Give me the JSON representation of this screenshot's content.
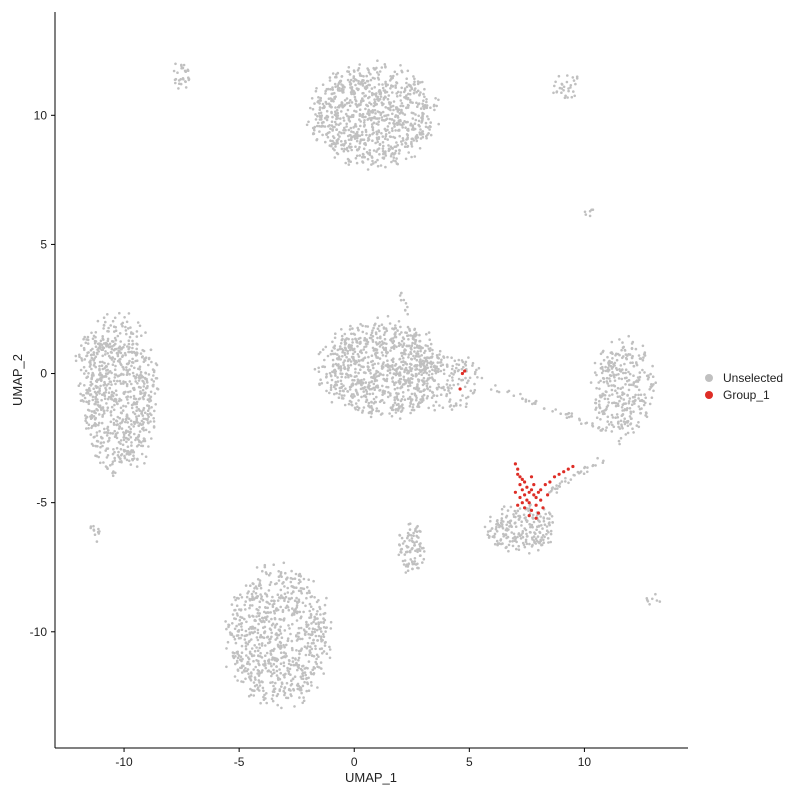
{
  "chart_data": {
    "type": "scatter",
    "title": "",
    "xlabel": "UMAP_1",
    "ylabel": "UMAP_2",
    "xlim": [
      -13.0,
      14.5
    ],
    "ylim": [
      -14.5,
      14.0
    ],
    "x_ticks": [
      -10,
      -5,
      0,
      5,
      10
    ],
    "y_ticks": [
      10,
      5,
      0,
      -5,
      -10
    ],
    "grid": false,
    "legend_position": "right",
    "series": [
      {
        "name": "Unselected",
        "color": "#c0c0c0",
        "clusters": [
          {
            "center": [
              0.8,
              10.0
            ],
            "radius": [
              2.6,
              1.9
            ],
            "points": 900
          },
          {
            "center": [
              -10.2,
              -0.8
            ],
            "radius": [
              1.6,
              2.9
            ],
            "points": 750
          },
          {
            "center": [
              -3.3,
              -10.2
            ],
            "radius": [
              2.2,
              2.6
            ],
            "points": 800
          },
          {
            "center": [
              1.2,
              0.2
            ],
            "radius": [
              2.6,
              1.8
            ],
            "points": 850
          },
          {
            "center": [
              3.8,
              -0.3
            ],
            "radius": [
              1.6,
              1.2
            ],
            "points": 150
          },
          {
            "center": [
              7.2,
              -6.0
            ],
            "radius": [
              1.5,
              0.9
            ],
            "points": 220
          },
          {
            "center": [
              11.7,
              -0.6
            ],
            "radius": [
              1.3,
              1.9
            ],
            "points": 320
          },
          {
            "center": [
              2.5,
              -6.8
            ],
            "radius": [
              0.6,
              0.9
            ],
            "points": 90
          },
          {
            "center": [
              -7.5,
              11.5
            ],
            "radius": [
              0.4,
              0.6
            ],
            "points": 30
          },
          {
            "center": [
              9.2,
              11.1
            ],
            "radius": [
              0.6,
              0.5
            ],
            "points": 30
          },
          {
            "center": [
              -11.3,
              -6.2
            ],
            "radius": [
              0.3,
              0.4
            ],
            "points": 12
          },
          {
            "center": [
              10.2,
              6.3
            ],
            "radius": [
              0.2,
              0.2
            ],
            "points": 6
          },
          {
            "center": [
              13.0,
              -8.8
            ],
            "radius": [
              0.35,
              0.25
            ],
            "points": 8
          },
          {
            "center": [
              -11.5,
              0.2
            ],
            "radius": [
              0.6,
              1.5
            ],
            "points": 60
          }
        ],
        "bridges": [
          {
            "from": [
              6.0,
              -0.5
            ],
            "to": [
              11.0,
              -2.2
            ],
            "points": 45
          },
          {
            "from": [
              8.5,
              -4.6
            ],
            "to": [
              10.8,
              -3.3
            ],
            "points": 35
          },
          {
            "from": [
              2.0,
              3.4
            ],
            "to": [
              3.0,
              0.3
            ],
            "points": 25
          }
        ]
      },
      {
        "name": "Group_1",
        "color": "#de2d26",
        "points": [
          [
            7.0,
            -3.5
          ],
          [
            7.1,
            -3.7
          ],
          [
            7.1,
            -3.9
          ],
          [
            7.2,
            -4.0
          ],
          [
            7.3,
            -4.1
          ],
          [
            7.2,
            -4.3
          ],
          [
            7.4,
            -4.2
          ],
          [
            7.5,
            -4.4
          ],
          [
            7.3,
            -4.5
          ],
          [
            7.6,
            -4.6
          ],
          [
            7.7,
            -4.5
          ],
          [
            7.8,
            -4.7
          ],
          [
            7.9,
            -4.8
          ],
          [
            8.0,
            -4.6
          ],
          [
            8.1,
            -4.5
          ],
          [
            8.3,
            -4.3
          ],
          [
            8.5,
            -4.2
          ],
          [
            8.7,
            -4.0
          ],
          [
            8.9,
            -3.9
          ],
          [
            9.1,
            -3.8
          ],
          [
            9.3,
            -3.7
          ],
          [
            9.5,
            -3.6
          ],
          [
            7.2,
            -4.8
          ],
          [
            7.3,
            -5.0
          ],
          [
            7.4,
            -5.2
          ],
          [
            7.6,
            -5.0
          ],
          [
            7.7,
            -5.3
          ],
          [
            7.9,
            -5.1
          ],
          [
            8.0,
            -5.4
          ],
          [
            7.5,
            -4.9
          ],
          [
            7.8,
            -4.3
          ],
          [
            8.1,
            -4.9
          ],
          [
            7.1,
            -5.1
          ],
          [
            7.6,
            -5.5
          ],
          [
            7.9,
            -5.6
          ],
          [
            8.2,
            -5.2
          ],
          [
            7.0,
            -4.6
          ],
          [
            7.4,
            -4.7
          ],
          [
            7.7,
            -4.0
          ],
          [
            8.4,
            -4.7
          ],
          [
            4.7,
            0.0
          ],
          [
            4.8,
            0.1
          ],
          [
            4.6,
            -0.6
          ]
        ]
      }
    ]
  }
}
